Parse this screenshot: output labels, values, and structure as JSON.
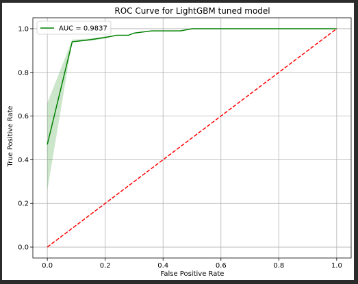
{
  "chart_data": {
    "type": "line",
    "title": "ROC Curve for LightGBM tuned model",
    "xlabel": "False Positive Rate",
    "ylabel": "True Positive Rate",
    "xlim": [
      -0.05,
      1.05
    ],
    "ylim": [
      -0.05,
      1.05
    ],
    "xticks": [
      0.0,
      0.2,
      0.4,
      0.6,
      0.8,
      1.0
    ],
    "yticks": [
      0.0,
      0.2,
      0.4,
      0.6,
      0.8,
      1.0
    ],
    "xtick_labels": [
      "0.0",
      "0.2",
      "0.4",
      "0.6",
      "0.8",
      "1.0"
    ],
    "ytick_labels": [
      "0.0",
      "0.2",
      "0.4",
      "0.6",
      "0.8",
      "1.0"
    ],
    "grid": true,
    "legend_position": "top-left",
    "series": [
      {
        "name": "AUC = 0.9837",
        "color": "#008000",
        "x": [
          0.0,
          0.086,
          0.15,
          0.2,
          0.24,
          0.28,
          0.3,
          0.36,
          0.4,
          0.46,
          0.5,
          0.6,
          0.7,
          0.8,
          0.9,
          1.0
        ],
        "y": [
          0.47,
          0.94,
          0.95,
          0.96,
          0.97,
          0.97,
          0.98,
          0.99,
          0.99,
          0.99,
          1.0,
          1.0,
          1.0,
          1.0,
          1.0,
          1.0
        ],
        "band_x": [
          0.0,
          0.086,
          0.15,
          0.2,
          0.24,
          0.28,
          0.3,
          0.36,
          0.4,
          0.46,
          0.5,
          1.0
        ],
        "band_lower": [
          0.26,
          0.94,
          0.945,
          0.955,
          0.97,
          0.97,
          0.98,
          0.99,
          0.99,
          0.99,
          1.0,
          1.0
        ],
        "band_upper": [
          0.66,
          0.95,
          0.955,
          0.965,
          0.97,
          0.97,
          0.98,
          0.99,
          0.99,
          0.99,
          1.0,
          1.0
        ],
        "band_color": "#008000"
      },
      {
        "style": "dashed",
        "color": "#ff0000",
        "x": [
          0.0,
          1.0
        ],
        "y": [
          0.0,
          1.0
        ]
      }
    ]
  }
}
